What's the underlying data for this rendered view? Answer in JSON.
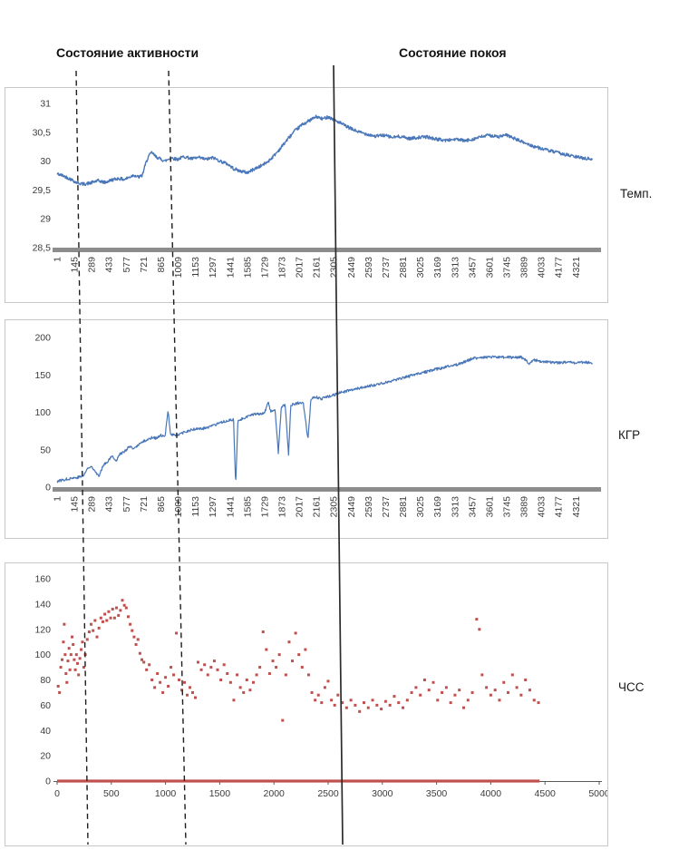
{
  "page": {
    "annotations": {
      "activity_label": "Состояние активности",
      "rest_label": "Состояние покоя"
    },
    "colors": {
      "line_blue": "#4876b8",
      "scatter_red": "#c0504d",
      "axis_gray": "#8c8c8c",
      "border_gray": "#c8c8c8",
      "text": "#3b3b3b"
    }
  },
  "chart_data": [
    {
      "id": "temp",
      "type": "line",
      "title": "Темп.",
      "color": "#4876b8",
      "stroke_width": 1.4,
      "noise": 0.028,
      "seed": 42,
      "xlim": [
        1,
        4500
      ],
      "ylim": [
        28.5,
        31
      ],
      "y_tick_labels": [
        "31",
        "30,5",
        "30",
        "29,5",
        "29",
        "28,5"
      ],
      "x_tick_labels": [
        "1",
        "145",
        "289",
        "433",
        "577",
        "721",
        "865",
        "1009",
        "1153",
        "1297",
        "1441",
        "1585",
        "1729",
        "1873",
        "2017",
        "2161",
        "2305",
        "2449",
        "2593",
        "2737",
        "2881",
        "3025",
        "3169",
        "3313",
        "3457",
        "3601",
        "3745",
        "3889",
        "4033",
        "4177",
        "4321"
      ],
      "keypoints": [
        [
          1,
          29.78
        ],
        [
          60,
          29.74
        ],
        [
          120,
          29.68
        ],
        [
          160,
          29.63
        ],
        [
          220,
          29.6
        ],
        [
          280,
          29.62
        ],
        [
          340,
          29.66
        ],
        [
          400,
          29.63
        ],
        [
          450,
          29.67
        ],
        [
          510,
          29.7
        ],
        [
          560,
          29.68
        ],
        [
          600,
          29.72
        ],
        [
          640,
          29.76
        ],
        [
          680,
          29.72
        ],
        [
          710,
          29.75
        ],
        [
          730,
          29.9
        ],
        [
          760,
          30.08
        ],
        [
          790,
          30.15
        ],
        [
          820,
          30.08
        ],
        [
          860,
          30.04
        ],
        [
          900,
          30.0
        ],
        [
          950,
          30.06
        ],
        [
          1000,
          30.03
        ],
        [
          1060,
          30.08
        ],
        [
          1120,
          30.04
        ],
        [
          1180,
          30.06
        ],
        [
          1240,
          30.03
        ],
        [
          1300,
          30.06
        ],
        [
          1360,
          30.0
        ],
        [
          1420,
          29.95
        ],
        [
          1470,
          29.87
        ],
        [
          1520,
          29.83
        ],
        [
          1585,
          29.8
        ],
        [
          1640,
          29.86
        ],
        [
          1700,
          29.92
        ],
        [
          1750,
          29.98
        ],
        [
          1800,
          30.08
        ],
        [
          1860,
          30.22
        ],
        [
          1920,
          30.38
        ],
        [
          1980,
          30.52
        ],
        [
          2040,
          30.63
        ],
        [
          2100,
          30.7
        ],
        [
          2160,
          30.77
        ],
        [
          2210,
          30.73
        ],
        [
          2260,
          30.77
        ],
        [
          2310,
          30.71
        ],
        [
          2360,
          30.66
        ],
        [
          2410,
          30.6
        ],
        [
          2460,
          30.55
        ],
        [
          2520,
          30.5
        ],
        [
          2580,
          30.47
        ],
        [
          2650,
          30.43
        ],
        [
          2720,
          30.45
        ],
        [
          2790,
          30.41
        ],
        [
          2860,
          30.43
        ],
        [
          2930,
          30.39
        ],
        [
          3000,
          30.41
        ],
        [
          3080,
          30.42
        ],
        [
          3160,
          30.38
        ],
        [
          3240,
          30.36
        ],
        [
          3320,
          30.38
        ],
        [
          3400,
          30.35
        ],
        [
          3460,
          30.38
        ],
        [
          3530,
          30.42
        ],
        [
          3600,
          30.45
        ],
        [
          3670,
          30.42
        ],
        [
          3745,
          30.45
        ],
        [
          3810,
          30.39
        ],
        [
          3889,
          30.32
        ],
        [
          3950,
          30.27
        ],
        [
          4030,
          30.22
        ],
        [
          4100,
          30.18
        ],
        [
          4180,
          30.14
        ],
        [
          4260,
          30.1
        ],
        [
          4330,
          30.07
        ],
        [
          4400,
          30.05
        ],
        [
          4460,
          30.03
        ]
      ]
    },
    {
      "id": "kgr",
      "type": "line",
      "title": "КГР",
      "color": "#4876b8",
      "stroke_width": 1.2,
      "noise": 1.8,
      "seed": 77,
      "xlim": [
        1,
        4500
      ],
      "ylim": [
        0,
        200
      ],
      "y_tick_labels": [
        "200",
        "150",
        "100",
        "50",
        "0"
      ],
      "x_tick_labels": [
        "1",
        "145",
        "289",
        "433",
        "577",
        "721",
        "865",
        "1009",
        "1153",
        "1297",
        "1441",
        "1585",
        "1729",
        "1873",
        "2017",
        "2161",
        "2305",
        "2449",
        "2593",
        "2737",
        "2881",
        "3025",
        "3169",
        "3313",
        "3457",
        "3601",
        "3745",
        "3889",
        "4033",
        "4177",
        "4321"
      ],
      "keypoints": [
        [
          1,
          8
        ],
        [
          60,
          10
        ],
        [
          120,
          12
        ],
        [
          170,
          13
        ],
        [
          220,
          15
        ],
        [
          250,
          24
        ],
        [
          290,
          28
        ],
        [
          320,
          21
        ],
        [
          350,
          14
        ],
        [
          385,
          30
        ],
        [
          420,
          34
        ],
        [
          440,
          38
        ],
        [
          465,
          42
        ],
        [
          490,
          34
        ],
        [
          520,
          44
        ],
        [
          560,
          47
        ],
        [
          600,
          54
        ],
        [
          640,
          51
        ],
        [
          680,
          57
        ],
        [
          720,
          61
        ],
        [
          760,
          64
        ],
        [
          800,
          67
        ],
        [
          830,
          65
        ],
        [
          865,
          69
        ],
        [
          900,
          67
        ],
        [
          925,
          104
        ],
        [
          945,
          70
        ],
        [
          1010,
          70
        ],
        [
          1060,
          73
        ],
        [
          1110,
          76
        ],
        [
          1160,
          78
        ],
        [
          1210,
          78
        ],
        [
          1260,
          80
        ],
        [
          1300,
          82
        ],
        [
          1350,
          85
        ],
        [
          1400,
          88
        ],
        [
          1440,
          90
        ],
        [
          1470,
          90
        ],
        [
          1488,
          2
        ],
        [
          1506,
          88
        ],
        [
          1550,
          92
        ],
        [
          1590,
          95
        ],
        [
          1640,
          97
        ],
        [
          1690,
          98
        ],
        [
          1730,
          100
        ],
        [
          1758,
          114
        ],
        [
          1780,
          100
        ],
        [
          1815,
          104
        ],
        [
          1843,
          46
        ],
        [
          1868,
          107
        ],
        [
          1900,
          110
        ],
        [
          1928,
          44
        ],
        [
          1948,
          110
        ],
        [
          2000,
          112
        ],
        [
          2050,
          114
        ],
        [
          2090,
          64
        ],
        [
          2115,
          118
        ],
        [
          2160,
          120
        ],
        [
          2205,
          118
        ],
        [
          2250,
          121
        ],
        [
          2305,
          123
        ],
        [
          2355,
          126
        ],
        [
          2405,
          128
        ],
        [
          2455,
          130
        ],
        [
          2510,
          132
        ],
        [
          2560,
          134
        ],
        [
          2600,
          135
        ],
        [
          2660,
          137
        ],
        [
          2710,
          139
        ],
        [
          2740,
          140
        ],
        [
          2805,
          143
        ],
        [
          2880,
          146
        ],
        [
          2950,
          149
        ],
        [
          3025,
          152
        ],
        [
          3100,
          155
        ],
        [
          3170,
          158
        ],
        [
          3250,
          161
        ],
        [
          3315,
          163
        ],
        [
          3385,
          167
        ],
        [
          3460,
          172
        ],
        [
          3520,
          173
        ],
        [
          3600,
          174
        ],
        [
          3680,
          173
        ],
        [
          3745,
          174
        ],
        [
          3800,
          173
        ],
        [
          3855,
          174
        ],
        [
          3890,
          172
        ],
        [
          3930,
          165
        ],
        [
          3970,
          170
        ],
        [
          4035,
          168
        ],
        [
          4100,
          167
        ],
        [
          4180,
          166
        ],
        [
          4255,
          167
        ],
        [
          4320,
          166
        ],
        [
          4400,
          167
        ],
        [
          4460,
          166
        ]
      ]
    },
    {
      "id": "hr",
      "type": "scatter",
      "title": "ЧСС",
      "color": "#c0504d",
      "xlim": [
        0,
        5000
      ],
      "ylim": [
        0,
        160
      ],
      "y_tick_labels": [
        "160",
        "140",
        "120",
        "100",
        "80",
        "60",
        "40",
        "20",
        "0"
      ],
      "x_tick_labels": [
        "0",
        "500",
        "1000",
        "1500",
        "2000",
        "2500",
        "3000",
        "3500",
        "4000",
        "4500",
        "5000"
      ],
      "baseline": {
        "y": 0,
        "x_start": 0,
        "x_end": 4450
      },
      "points": [
        [
          10,
          75
        ],
        [
          22,
          70
        ],
        [
          34,
          90
        ],
        [
          46,
          96
        ],
        [
          58,
          110
        ],
        [
          66,
          124
        ],
        [
          74,
          100
        ],
        [
          82,
          85
        ],
        [
          90,
          78
        ],
        [
          100,
          95
        ],
        [
          110,
          105
        ],
        [
          118,
          88
        ],
        [
          128,
          100
        ],
        [
          138,
          114
        ],
        [
          148,
          108
        ],
        [
          158,
          96
        ],
        [
          168,
          88
        ],
        [
          178,
          100
        ],
        [
          188,
          93
        ],
        [
          198,
          84
        ],
        [
          210,
          97
        ],
        [
          222,
          104
        ],
        [
          234,
          110
        ],
        [
          246,
          90
        ],
        [
          260,
          100
        ],
        [
          278,
          112
        ],
        [
          296,
          118
        ],
        [
          314,
          124
        ],
        [
          332,
          119
        ],
        [
          350,
          127
        ],
        [
          368,
          114
        ],
        [
          386,
          121
        ],
        [
          404,
          129
        ],
        [
          422,
          126
        ],
        [
          440,
          132
        ],
        [
          458,
          127
        ],
        [
          476,
          134
        ],
        [
          494,
          129
        ],
        [
          512,
          136
        ],
        [
          530,
          129
        ],
        [
          548,
          137
        ],
        [
          566,
          131
        ],
        [
          584,
          135
        ],
        [
          602,
          143
        ],
        [
          620,
          139
        ],
        [
          638,
          137
        ],
        [
          656,
          130
        ],
        [
          674,
          124
        ],
        [
          692,
          119
        ],
        [
          710,
          114
        ],
        [
          728,
          108
        ],
        [
          746,
          112
        ],
        [
          764,
          101
        ],
        [
          782,
          96
        ],
        [
          800,
          94
        ],
        [
          825,
          88
        ],
        [
          850,
          92
        ],
        [
          875,
          80
        ],
        [
          900,
          74
        ],
        [
          925,
          85
        ],
        [
          950,
          78
        ],
        [
          975,
          70
        ],
        [
          1000,
          82
        ],
        [
          1025,
          75
        ],
        [
          1050,
          90
        ],
        [
          1075,
          84
        ],
        [
          1100,
          117
        ],
        [
          1125,
          80
        ],
        [
          1150,
          72
        ],
        [
          1175,
          78
        ],
        [
          1200,
          68
        ],
        [
          1225,
          74
        ],
        [
          1250,
          70
        ],
        [
          1275,
          66
        ],
        [
          1300,
          94
        ],
        [
          1330,
          88
        ],
        [
          1360,
          92
        ],
        [
          1390,
          84
        ],
        [
          1420,
          90
        ],
        [
          1450,
          95
        ],
        [
          1480,
          88
        ],
        [
          1510,
          80
        ],
        [
          1540,
          92
        ],
        [
          1570,
          85
        ],
        [
          1600,
          78
        ],
        [
          1630,
          64
        ],
        [
          1660,
          84
        ],
        [
          1690,
          74
        ],
        [
          1720,
          70
        ],
        [
          1750,
          80
        ],
        [
          1780,
          72
        ],
        [
          1810,
          78
        ],
        [
          1840,
          84
        ],
        [
          1870,
          90
        ],
        [
          1900,
          118
        ],
        [
          1930,
          104
        ],
        [
          1960,
          85
        ],
        [
          1990,
          95
        ],
        [
          2020,
          90
        ],
        [
          2050,
          100
        ],
        [
          2080,
          48
        ],
        [
          2110,
          84
        ],
        [
          2140,
          110
        ],
        [
          2170,
          95
        ],
        [
          2200,
          117
        ],
        [
          2230,
          100
        ],
        [
          2260,
          90
        ],
        [
          2290,
          104
        ],
        [
          2320,
          84
        ],
        [
          2350,
          70
        ],
        [
          2380,
          64
        ],
        [
          2410,
          68
        ],
        [
          2440,
          62
        ],
        [
          2470,
          74
        ],
        [
          2500,
          79
        ],
        [
          2530,
          64
        ],
        [
          2560,
          60
        ],
        [
          2590,
          68
        ],
        [
          2630,
          62
        ],
        [
          2670,
          58
        ],
        [
          2710,
          64
        ],
        [
          2750,
          60
        ],
        [
          2790,
          55
        ],
        [
          2830,
          62
        ],
        [
          2870,
          58
        ],
        [
          2910,
          64
        ],
        [
          2950,
          60
        ],
        [
          2990,
          57
        ],
        [
          3030,
          63
        ],
        [
          3070,
          60
        ],
        [
          3110,
          67
        ],
        [
          3150,
          62
        ],
        [
          3190,
          58
        ],
        [
          3230,
          64
        ],
        [
          3270,
          70
        ],
        [
          3310,
          74
        ],
        [
          3350,
          68
        ],
        [
          3390,
          80
        ],
        [
          3430,
          72
        ],
        [
          3470,
          78
        ],
        [
          3510,
          64
        ],
        [
          3550,
          70
        ],
        [
          3590,
          74
        ],
        [
          3630,
          62
        ],
        [
          3670,
          68
        ],
        [
          3710,
          72
        ],
        [
          3750,
          58
        ],
        [
          3790,
          64
        ],
        [
          3830,
          70
        ],
        [
          3870,
          128
        ],
        [
          3895,
          120
        ],
        [
          3920,
          84
        ],
        [
          3960,
          74
        ],
        [
          4000,
          68
        ],
        [
          4040,
          72
        ],
        [
          4080,
          64
        ],
        [
          4120,
          78
        ],
        [
          4160,
          70
        ],
        [
          4200,
          84
        ],
        [
          4240,
          74
        ],
        [
          4280,
          68
        ],
        [
          4320,
          80
        ],
        [
          4360,
          72
        ],
        [
          4400,
          64
        ],
        [
          4440,
          62
        ]
      ]
    }
  ]
}
